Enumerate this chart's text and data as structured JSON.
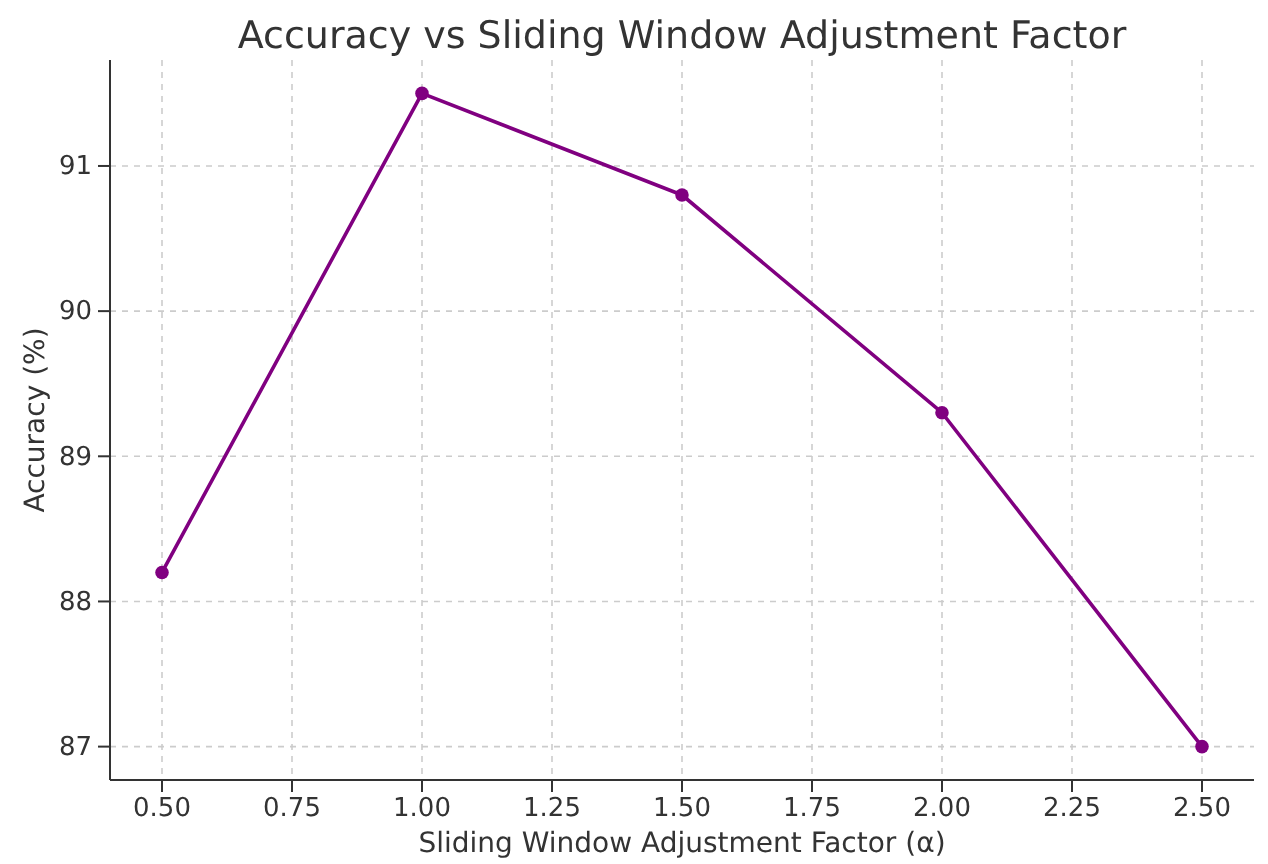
{
  "chart_data": {
    "type": "line",
    "title": "Accuracy vs Sliding Window Adjustment Factor",
    "xlabel": "Sliding Window Adjustment Factor (α)",
    "ylabel": "Accuracy (%)",
    "x": [
      0.5,
      1.0,
      1.5,
      2.0,
      2.5
    ],
    "series": [
      {
        "color": "#800080",
        "values": [
          88.2,
          91.5,
          90.8,
          89.3,
          87.0
        ]
      }
    ],
    "xlim": [
      0.4,
      2.6
    ],
    "ylim": [
      86.77,
      91.73
    ],
    "xticks": [
      {
        "value": 0.5,
        "label": "0.50"
      },
      {
        "value": 0.75,
        "label": "0.75"
      },
      {
        "value": 1.0,
        "label": "1.00"
      },
      {
        "value": 1.25,
        "label": "1.25"
      },
      {
        "value": 1.5,
        "label": "1.50"
      },
      {
        "value": 1.75,
        "label": "1.75"
      },
      {
        "value": 2.0,
        "label": "2.00"
      },
      {
        "value": 2.25,
        "label": "2.25"
      },
      {
        "value": 2.5,
        "label": "2.50"
      }
    ],
    "yticks": [
      87,
      88,
      89,
      90,
      91
    ],
    "grid": true,
    "marker": "circle",
    "line_style": "solid"
  }
}
